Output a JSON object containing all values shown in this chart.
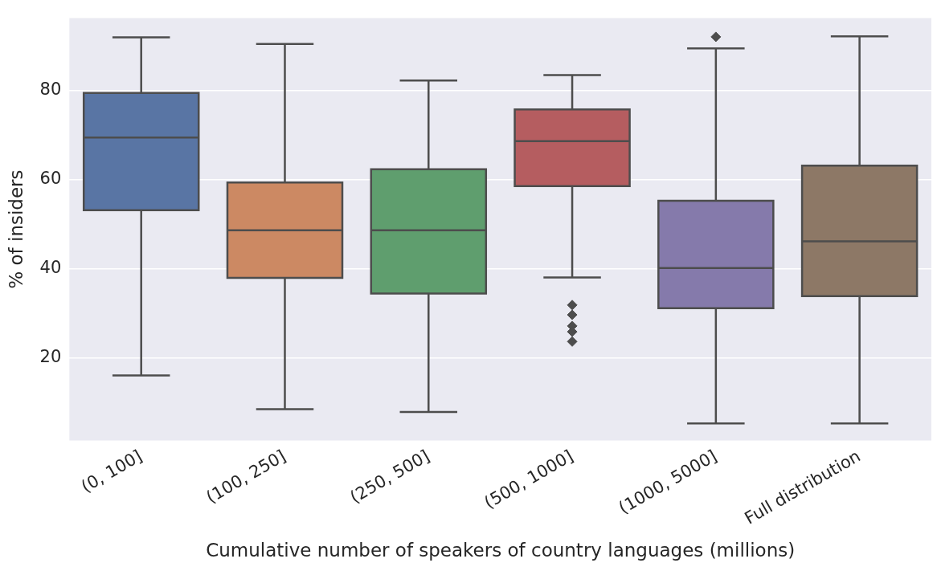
{
  "chart_data": {
    "type": "box",
    "xlabel": "Cumulative number of speakers of country languages (millions)",
    "ylabel": "% of insiders",
    "categories": [
      "(0, 100]",
      "(100, 250]",
      "(250, 500]",
      "(500, 1000]",
      "(1000, 5000]",
      "Full distribution"
    ],
    "colors": [
      "#5975a4",
      "#cc8963",
      "#5f9e6e",
      "#b55d60",
      "#857aab",
      "#8d7866"
    ],
    "boxes": [
      {
        "low": 16.0,
        "q1": 53.1,
        "median": 69.4,
        "q3": 79.4,
        "high": 91.9
      },
      {
        "low": 8.4,
        "q1": 37.9,
        "median": 48.6,
        "q3": 59.3,
        "high": 90.4
      },
      {
        "low": 7.8,
        "q1": 34.4,
        "median": 48.6,
        "q3": 62.3,
        "high": 82.2
      },
      {
        "low": 38.0,
        "q1": 58.5,
        "median": 68.6,
        "q3": 75.7,
        "high": 83.4,
        "outliers": [
          31.8,
          29.6,
          27.1,
          25.8,
          23.6
        ]
      },
      {
        "low": 5.2,
        "q1": 31.1,
        "median": 40.1,
        "q3": 55.2,
        "high": 89.4,
        "outliers": [
          92.0
        ]
      },
      {
        "low": 5.2,
        "q1": 33.8,
        "median": 46.1,
        "q3": 63.1,
        "high": 92.1
      }
    ],
    "ylim": [
      1.4,
      96.2
    ],
    "yticks": [
      20,
      40,
      60,
      80
    ],
    "grid": "y",
    "legend": false,
    "marker": "diamond"
  }
}
